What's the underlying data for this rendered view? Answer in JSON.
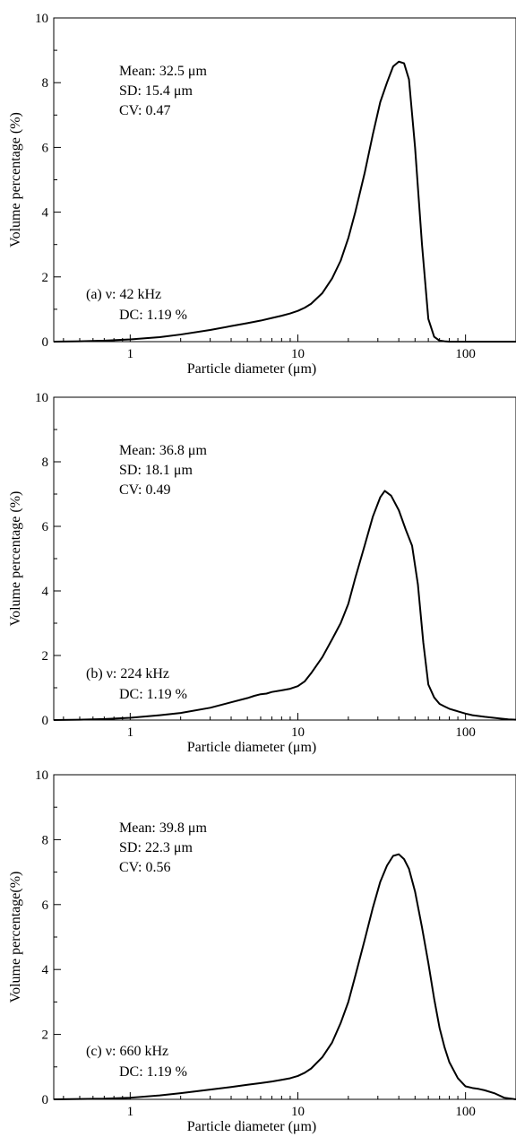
{
  "chart_data": [
    {
      "type": "line",
      "panel": "(a)",
      "xlabel": "Particle diameter (μm)",
      "ylabel": "Volume percentage (%)",
      "xscale": "log",
      "xlim": [
        0.35,
        200
      ],
      "ylim": [
        0,
        10
      ],
      "xticks": [
        1,
        10,
        100
      ],
      "xtick_labels": [
        "1",
        "10",
        "100"
      ],
      "yticks": [
        0,
        2,
        4,
        6,
        8,
        10
      ],
      "ytick_labels": [
        "0",
        "2",
        "4",
        "6",
        "8",
        "10"
      ],
      "grid": false,
      "stats": [
        "Mean: 32.5 μm",
        "SD: 15.4 μm",
        "CV: 0.47"
      ],
      "condition": [
        "(a)  ν: 42 kHz",
        "DC: 1.19 %"
      ],
      "x": [
        0.35,
        0.5,
        0.7,
        1,
        1.5,
        2,
        3,
        4,
        5,
        6,
        7,
        8,
        9,
        10,
        11,
        12,
        14,
        16,
        18,
        20,
        22,
        25,
        28,
        31,
        34,
        37,
        40,
        43,
        46,
        50,
        55,
        60,
        65,
        70,
        75,
        80,
        100,
        150,
        200
      ],
      "y": [
        0,
        0.01,
        0.03,
        0.07,
        0.14,
        0.22,
        0.36,
        0.48,
        0.57,
        0.65,
        0.73,
        0.8,
        0.87,
        0.95,
        1.05,
        1.17,
        1.5,
        1.95,
        2.5,
        3.2,
        4.0,
        5.2,
        6.4,
        7.4,
        8.0,
        8.5,
        8.65,
        8.6,
        8.1,
        6.0,
        3.0,
        0.7,
        0.15,
        0.03,
        0.01,
        0,
        0,
        0,
        0
      ]
    },
    {
      "type": "line",
      "panel": "(b)",
      "xlabel": "Particle diameter (μm)",
      "ylabel": "Volume percentage (%)",
      "xscale": "log",
      "xlim": [
        0.35,
        200
      ],
      "ylim": [
        0,
        10
      ],
      "xticks": [
        1,
        10,
        100
      ],
      "xtick_labels": [
        "1",
        "10",
        "100"
      ],
      "yticks": [
        0,
        2,
        4,
        6,
        8,
        10
      ],
      "ytick_labels": [
        "0",
        "2",
        "4",
        "6",
        "8",
        "10"
      ],
      "grid": false,
      "stats": [
        "Mean: 36.8 μm",
        "SD: 18.1 μm",
        "CV: 0.49"
      ],
      "condition": [
        "(b)  ν: 224 kHz",
        "DC: 1.19 %"
      ],
      "x": [
        0.35,
        0.5,
        0.7,
        1,
        1.5,
        2,
        3,
        4,
        5,
        5.5,
        6,
        6.5,
        7,
        8,
        9,
        10,
        11,
        12,
        14,
        16,
        18,
        20,
        22,
        25,
        28,
        31,
        33,
        36,
        40,
        44,
        48,
        52,
        56,
        60,
        65,
        70,
        75,
        80,
        90,
        100,
        110,
        130,
        160,
        180,
        200
      ],
      "y": [
        0,
        0.01,
        0.03,
        0.07,
        0.15,
        0.22,
        0.38,
        0.55,
        0.68,
        0.75,
        0.8,
        0.82,
        0.87,
        0.92,
        0.97,
        1.05,
        1.2,
        1.45,
        1.95,
        2.5,
        3.0,
        3.6,
        4.4,
        5.4,
        6.3,
        6.9,
        7.1,
        6.95,
        6.5,
        5.9,
        5.4,
        4.2,
        2.4,
        1.1,
        0.7,
        0.5,
        0.42,
        0.35,
        0.27,
        0.2,
        0.15,
        0.1,
        0.05,
        0.02,
        0.01
      ]
    },
    {
      "type": "line",
      "panel": "(c)",
      "xlabel": "Particle diameter (μm)",
      "ylabel": "Volume percentage(%)",
      "xscale": "log",
      "xlim": [
        0.35,
        200
      ],
      "ylim": [
        0,
        10
      ],
      "xticks": [
        1,
        10,
        100
      ],
      "xtick_labels": [
        "1",
        "10",
        "100"
      ],
      "yticks": [
        0,
        2,
        4,
        6,
        8,
        10
      ],
      "ytick_labels": [
        "0",
        "2",
        "4",
        "6",
        "8",
        "10"
      ],
      "grid": false,
      "stats": [
        "Mean: 39.8 μm",
        "SD: 22.3 μm",
        "CV: 0.56"
      ],
      "condition": [
        "(c)  ν: 660 kHz",
        "DC: 1.19 %"
      ],
      "x": [
        0.35,
        0.5,
        0.7,
        1,
        1.5,
        2,
        3,
        4,
        5,
        6,
        7,
        8,
        9,
        10,
        11,
        12,
        14,
        16,
        18,
        20,
        22,
        25,
        28,
        31,
        34,
        37,
        40,
        43,
        46,
        50,
        55,
        60,
        65,
        70,
        75,
        80,
        90,
        100,
        110,
        120,
        130,
        150,
        170,
        200
      ],
      "y": [
        0,
        0.01,
        0.02,
        0.05,
        0.12,
        0.19,
        0.3,
        0.38,
        0.45,
        0.5,
        0.55,
        0.6,
        0.65,
        0.72,
        0.82,
        0.95,
        1.3,
        1.75,
        2.35,
        3.0,
        3.8,
        4.9,
        5.9,
        6.7,
        7.2,
        7.5,
        7.55,
        7.4,
        7.1,
        6.4,
        5.3,
        4.2,
        3.1,
        2.2,
        1.6,
        1.15,
        0.65,
        0.4,
        0.35,
        0.32,
        0.28,
        0.18,
        0.05,
        0
      ]
    }
  ]
}
